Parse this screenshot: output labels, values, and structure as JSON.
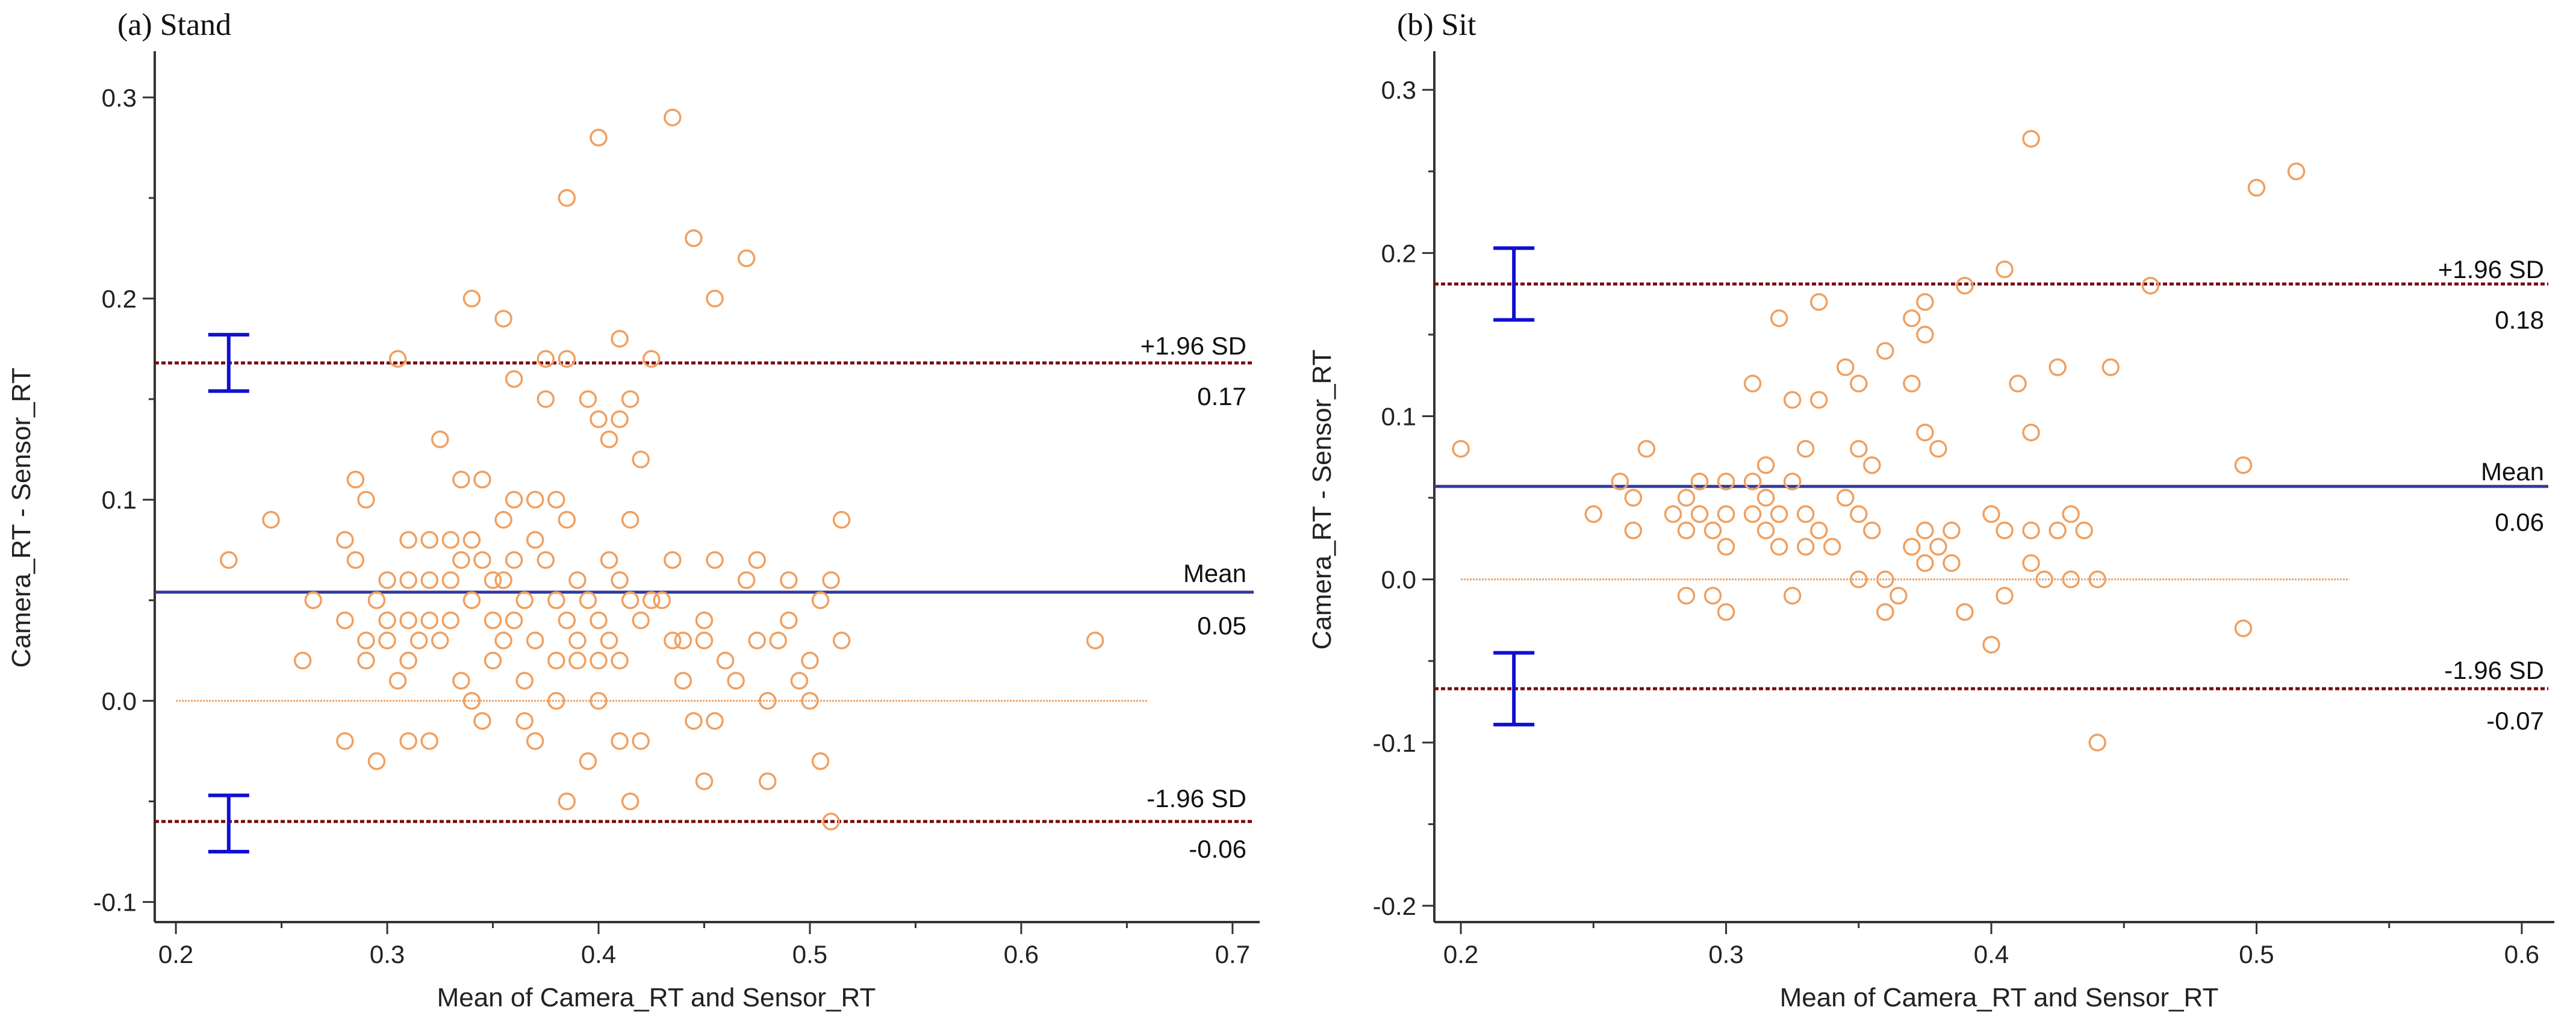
{
  "colors": {
    "points": "#f0a060",
    "zero_line": "#f0a060",
    "mean_line": "#303a9a",
    "loa_line": "#7a0a0a",
    "ci_bar": "#1010d0",
    "axis": "#333333"
  },
  "chart_data": [
    {
      "type": "scatter",
      "title": "(a) Stand",
      "xlabel": "Mean of Camera_RT and Sensor_RT",
      "ylabel": "Camera_RT - Sensor_RT",
      "xlim": [
        0.19,
        0.71
      ],
      "ylim": [
        -0.11,
        0.32
      ],
      "xticks": [
        0.2,
        0.3,
        0.4,
        0.5,
        0.6,
        0.7
      ],
      "xtick_labels": [
        "0.2",
        "0.3",
        "0.4",
        "0.5",
        "0.6",
        "0.7"
      ],
      "yticks": [
        -0.1,
        0.0,
        0.1,
        0.2,
        0.3
      ],
      "ytick_labels": [
        "-0.1",
        "0.0",
        "0.1",
        "0.2",
        "0.3"
      ],
      "zero_line_x": [
        0.2,
        0.66
      ],
      "mean": {
        "label": "Mean",
        "value": 0.054,
        "display": "0.05"
      },
      "upper_loa": {
        "label": "+1.96 SD",
        "value": 0.168,
        "display": "0.17",
        "ci": [
          0.154,
          0.182
        ],
        "ci_x": 0.225
      },
      "lower_loa": {
        "label": "-1.96 SD",
        "value": -0.06,
        "display": "-0.06",
        "ci": [
          -0.075,
          -0.047
        ],
        "ci_x": 0.225
      },
      "points": [
        [
          0.225,
          0.07
        ],
        [
          0.245,
          0.09
        ],
        [
          0.26,
          0.02
        ],
        [
          0.265,
          0.05
        ],
        [
          0.28,
          0.08
        ],
        [
          0.28,
          0.04
        ],
        [
          0.28,
          -0.02
        ],
        [
          0.285,
          0.11
        ],
        [
          0.285,
          0.07
        ],
        [
          0.29,
          0.1
        ],
        [
          0.29,
          0.03
        ],
        [
          0.29,
          0.02
        ],
        [
          0.295,
          0.05
        ],
        [
          0.295,
          -0.03
        ],
        [
          0.3,
          0.06
        ],
        [
          0.3,
          0.04
        ],
        [
          0.3,
          0.03
        ],
        [
          0.305,
          0.17
        ],
        [
          0.305,
          0.01
        ],
        [
          0.31,
          0.08
        ],
        [
          0.31,
          0.06
        ],
        [
          0.31,
          0.04
        ],
        [
          0.31,
          0.02
        ],
        [
          0.31,
          -0.02
        ],
        [
          0.315,
          0.03
        ],
        [
          0.32,
          0.08
        ],
        [
          0.32,
          0.06
        ],
        [
          0.32,
          0.04
        ],
        [
          0.32,
          -0.02
        ],
        [
          0.325,
          0.13
        ],
        [
          0.325,
          0.03
        ],
        [
          0.33,
          0.08
        ],
        [
          0.33,
          0.06
        ],
        [
          0.33,
          0.04
        ],
        [
          0.335,
          0.11
        ],
        [
          0.335,
          0.07
        ],
        [
          0.335,
          0.01
        ],
        [
          0.34,
          0.2
        ],
        [
          0.34,
          0.08
        ],
        [
          0.34,
          0.05
        ],
        [
          0.34,
          0.0
        ],
        [
          0.345,
          0.11
        ],
        [
          0.345,
          0.07
        ],
        [
          0.345,
          -0.01
        ],
        [
          0.35,
          0.06
        ],
        [
          0.35,
          0.04
        ],
        [
          0.35,
          0.02
        ],
        [
          0.355,
          0.19
        ],
        [
          0.355,
          0.09
        ],
        [
          0.355,
          0.06
        ],
        [
          0.355,
          0.03
        ],
        [
          0.36,
          0.16
        ],
        [
          0.36,
          0.1
        ],
        [
          0.36,
          0.07
        ],
        [
          0.36,
          0.04
        ],
        [
          0.365,
          0.05
        ],
        [
          0.365,
          0.01
        ],
        [
          0.365,
          -0.01
        ],
        [
          0.37,
          0.1
        ],
        [
          0.37,
          0.08
        ],
        [
          0.37,
          0.03
        ],
        [
          0.37,
          -0.02
        ],
        [
          0.375,
          0.17
        ],
        [
          0.375,
          0.15
        ],
        [
          0.375,
          0.07
        ],
        [
          0.38,
          0.1
        ],
        [
          0.38,
          0.05
        ],
        [
          0.38,
          0.02
        ],
        [
          0.38,
          0.0
        ],
        [
          0.385,
          0.25
        ],
        [
          0.385,
          0.17
        ],
        [
          0.385,
          0.09
        ],
        [
          0.385,
          0.04
        ],
        [
          0.385,
          -0.05
        ],
        [
          0.39,
          0.06
        ],
        [
          0.39,
          0.03
        ],
        [
          0.39,
          0.02
        ],
        [
          0.395,
          0.15
        ],
        [
          0.395,
          0.05
        ],
        [
          0.395,
          -0.03
        ],
        [
          0.4,
          0.28
        ],
        [
          0.4,
          0.14
        ],
        [
          0.4,
          0.04
        ],
        [
          0.4,
          0.02
        ],
        [
          0.4,
          0.0
        ],
        [
          0.405,
          0.13
        ],
        [
          0.405,
          0.07
        ],
        [
          0.405,
          0.03
        ],
        [
          0.41,
          0.18
        ],
        [
          0.41,
          0.14
        ],
        [
          0.41,
          0.06
        ],
        [
          0.41,
          0.02
        ],
        [
          0.41,
          -0.02
        ],
        [
          0.415,
          0.15
        ],
        [
          0.415,
          0.09
        ],
        [
          0.415,
          0.05
        ],
        [
          0.415,
          -0.05
        ],
        [
          0.42,
          0.12
        ],
        [
          0.42,
          0.04
        ],
        [
          0.42,
          -0.02
        ],
        [
          0.425,
          0.17
        ],
        [
          0.425,
          0.05
        ],
        [
          0.43,
          0.05
        ],
        [
          0.435,
          0.29
        ],
        [
          0.435,
          0.07
        ],
        [
          0.435,
          0.03
        ],
        [
          0.44,
          0.03
        ],
        [
          0.44,
          0.01
        ],
        [
          0.445,
          0.23
        ],
        [
          0.445,
          -0.01
        ],
        [
          0.45,
          0.04
        ],
        [
          0.45,
          0.03
        ],
        [
          0.45,
          -0.04
        ],
        [
          0.455,
          0.2
        ],
        [
          0.455,
          0.07
        ],
        [
          0.455,
          -0.01
        ],
        [
          0.46,
          0.02
        ],
        [
          0.465,
          0.01
        ],
        [
          0.47,
          0.22
        ],
        [
          0.47,
          0.06
        ],
        [
          0.475,
          0.07
        ],
        [
          0.475,
          0.03
        ],
        [
          0.48,
          0.0
        ],
        [
          0.48,
          -0.04
        ],
        [
          0.485,
          0.03
        ],
        [
          0.49,
          0.06
        ],
        [
          0.49,
          0.04
        ],
        [
          0.495,
          0.01
        ],
        [
          0.5,
          0.02
        ],
        [
          0.5,
          0.0
        ],
        [
          0.505,
          0.05
        ],
        [
          0.505,
          -0.03
        ],
        [
          0.51,
          0.06
        ],
        [
          0.51,
          -0.06
        ],
        [
          0.515,
          0.09
        ],
        [
          0.515,
          0.03
        ],
        [
          0.635,
          0.03
        ]
      ]
    },
    {
      "type": "scatter",
      "title": "(b) Sit",
      "xlabel": "Mean of Camera_RT and Sensor_RT",
      "ylabel": "Camera_RT - Sensor_RT",
      "xlim": [
        0.19,
        0.61
      ],
      "ylim": [
        -0.21,
        0.32
      ],
      "xticks": [
        0.2,
        0.3,
        0.4,
        0.5,
        0.6
      ],
      "xtick_labels": [
        "0.2",
        "0.3",
        "0.4",
        "0.5",
        "0.6"
      ],
      "yticks": [
        -0.2,
        -0.1,
        0.0,
        0.1,
        0.2,
        0.3
      ],
      "ytick_labels": [
        "-0.2",
        "-0.1",
        "0.0",
        "0.1",
        "0.2",
        "0.3"
      ],
      "zero_line_x": [
        0.2,
        0.535
      ],
      "mean": {
        "label": "Mean",
        "value": 0.057,
        "display": "0.06"
      },
      "upper_loa": {
        "label": "+1.96 SD",
        "value": 0.181,
        "display": "0.18",
        "ci": [
          0.159,
          0.203
        ],
        "ci_x": 0.22
      },
      "lower_loa": {
        "label": "-1.96 SD",
        "value": -0.067,
        "display": "-0.07",
        "ci": [
          -0.089,
          -0.045
        ],
        "ci_x": 0.22
      },
      "points": [
        [
          0.2,
          0.08
        ],
        [
          0.25,
          0.04
        ],
        [
          0.26,
          0.06
        ],
        [
          0.265,
          0.05
        ],
        [
          0.265,
          0.03
        ],
        [
          0.27,
          0.08
        ],
        [
          0.28,
          0.04
        ],
        [
          0.285,
          0.05
        ],
        [
          0.285,
          0.03
        ],
        [
          0.285,
          -0.01
        ],
        [
          0.29,
          0.06
        ],
        [
          0.29,
          0.04
        ],
        [
          0.295,
          0.03
        ],
        [
          0.295,
          -0.01
        ],
        [
          0.3,
          0.06
        ],
        [
          0.3,
          0.04
        ],
        [
          0.3,
          0.02
        ],
        [
          0.3,
          -0.02
        ],
        [
          0.31,
          0.12
        ],
        [
          0.31,
          0.06
        ],
        [
          0.31,
          0.04
        ],
        [
          0.315,
          0.07
        ],
        [
          0.315,
          0.05
        ],
        [
          0.315,
          0.03
        ],
        [
          0.32,
          0.16
        ],
        [
          0.32,
          0.04
        ],
        [
          0.32,
          0.02
        ],
        [
          0.325,
          0.11
        ],
        [
          0.325,
          0.06
        ],
        [
          0.325,
          -0.01
        ],
        [
          0.33,
          0.08
        ],
        [
          0.33,
          0.04
        ],
        [
          0.33,
          0.02
        ],
        [
          0.335,
          0.17
        ],
        [
          0.335,
          0.11
        ],
        [
          0.335,
          0.03
        ],
        [
          0.34,
          0.02
        ],
        [
          0.345,
          0.13
        ],
        [
          0.345,
          0.05
        ],
        [
          0.35,
          0.12
        ],
        [
          0.35,
          0.08
        ],
        [
          0.35,
          0.04
        ],
        [
          0.35,
          0.0
        ],
        [
          0.355,
          0.07
        ],
        [
          0.355,
          0.03
        ],
        [
          0.36,
          0.14
        ],
        [
          0.36,
          0.0
        ],
        [
          0.36,
          -0.02
        ],
        [
          0.365,
          -0.01
        ],
        [
          0.37,
          0.16
        ],
        [
          0.37,
          0.12
        ],
        [
          0.37,
          0.02
        ],
        [
          0.375,
          0.17
        ],
        [
          0.375,
          0.15
        ],
        [
          0.375,
          0.09
        ],
        [
          0.375,
          0.03
        ],
        [
          0.375,
          0.01
        ],
        [
          0.38,
          0.08
        ],
        [
          0.38,
          0.02
        ],
        [
          0.385,
          0.03
        ],
        [
          0.385,
          0.01
        ],
        [
          0.39,
          0.18
        ],
        [
          0.39,
          -0.02
        ],
        [
          0.4,
          0.04
        ],
        [
          0.4,
          -0.04
        ],
        [
          0.405,
          0.19
        ],
        [
          0.405,
          0.03
        ],
        [
          0.405,
          -0.01
        ],
        [
          0.41,
          0.12
        ],
        [
          0.415,
          0.27
        ],
        [
          0.415,
          0.09
        ],
        [
          0.415,
          0.03
        ],
        [
          0.415,
          0.01
        ],
        [
          0.42,
          0.0
        ],
        [
          0.425,
          0.13
        ],
        [
          0.425,
          0.03
        ],
        [
          0.43,
          0.04
        ],
        [
          0.43,
          0.0
        ],
        [
          0.435,
          0.03
        ],
        [
          0.44,
          0.0
        ],
        [
          0.44,
          -0.1
        ],
        [
          0.445,
          0.13
        ],
        [
          0.46,
          0.18
        ],
        [
          0.495,
          0.07
        ],
        [
          0.495,
          -0.03
        ],
        [
          0.5,
          0.24
        ],
        [
          0.515,
          0.25
        ]
      ]
    }
  ]
}
